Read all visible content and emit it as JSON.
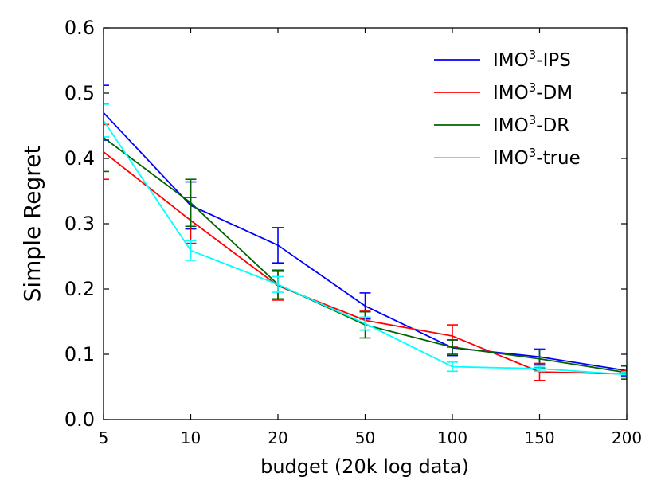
{
  "chart_data": {
    "type": "line",
    "title": "",
    "xlabel": "budget (20k log data)",
    "ylabel": "Simple Regret",
    "categories": [
      "5",
      "10",
      "20",
      "50",
      "100",
      "150",
      "200"
    ],
    "ylim": [
      0.0,
      0.6
    ],
    "yticks": [
      "0.0",
      "0.1",
      "0.2",
      "0.3",
      "0.4",
      "0.5",
      "0.6"
    ],
    "yticks_values": [
      0.0,
      0.1,
      0.2,
      0.3,
      0.4,
      0.5,
      0.6
    ],
    "grid": false,
    "legend_position": "top-right",
    "series": [
      {
        "name": "IMO³-IPS",
        "label_base": "IMO",
        "label_sup": "3",
        "label_suffix": "-IPS",
        "color": "#0000ff",
        "values": [
          0.47,
          0.328,
          0.267,
          0.174,
          0.11,
          0.096,
          0.075
        ],
        "errors": [
          0.042,
          0.036,
          0.027,
          0.02,
          0.012,
          0.012,
          0.008
        ]
      },
      {
        "name": "IMO³-DM",
        "label_base": "IMO",
        "label_sup": "3",
        "label_suffix": "-DM",
        "color": "#ff0000",
        "values": [
          0.41,
          0.305,
          0.205,
          0.152,
          0.128,
          0.073,
          0.07
        ],
        "errors": [
          0.042,
          0.035,
          0.022,
          0.015,
          0.017,
          0.013,
          0.005
        ]
      },
      {
        "name": "IMO³-DR",
        "label_base": "IMO",
        "label_sup": "3",
        "label_suffix": "-DR",
        "color": "#006400",
        "values": [
          0.432,
          0.332,
          0.207,
          0.145,
          0.111,
          0.093,
          0.072
        ],
        "errors": [
          0.052,
          0.036,
          0.022,
          0.02,
          0.011,
          0.014,
          0.01
        ]
      },
      {
        "name": "IMO³-true",
        "label_base": "IMO",
        "label_sup": "3",
        "label_suffix": "-true",
        "color": "#00ffff",
        "values": [
          0.458,
          0.259,
          0.207,
          0.147,
          0.081,
          0.078,
          0.069
        ],
        "errors": [
          0.025,
          0.015,
          0.012,
          0.01,
          0.007,
          0.004,
          0.004
        ]
      }
    ]
  }
}
